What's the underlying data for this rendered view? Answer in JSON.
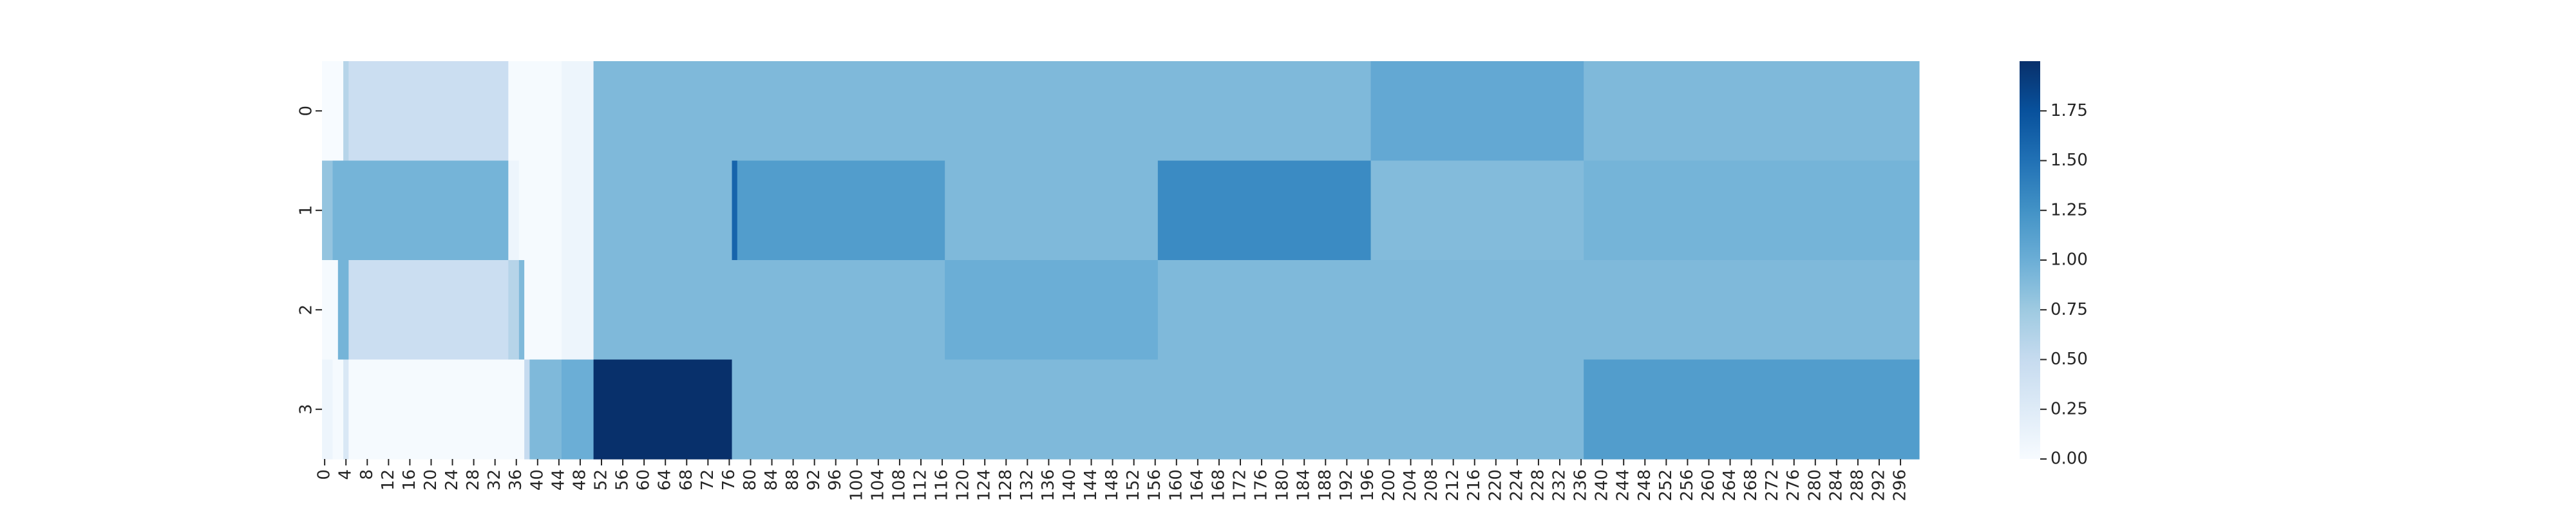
{
  "chart_data": {
    "type": "heatmap",
    "title": "",
    "xlabel": "",
    "ylabel": "",
    "colormap": "Blues",
    "vmin": 0.0,
    "vmax": 2.0,
    "n_columns": 300,
    "row_labels": [
      "0",
      "1",
      "2",
      "3"
    ],
    "x_tick_labels": [
      "0",
      "4",
      "8",
      "12",
      "16",
      "20",
      "24",
      "28",
      "32",
      "36",
      "40",
      "44",
      "48",
      "52",
      "56",
      "60",
      "64",
      "68",
      "72",
      "76",
      "80",
      "84",
      "88",
      "92",
      "96",
      "100",
      "104",
      "108",
      "112",
      "116",
      "120",
      "124",
      "128",
      "132",
      "136",
      "140",
      "144",
      "148",
      "152",
      "156",
      "160",
      "164",
      "168",
      "172",
      "176",
      "180",
      "184",
      "188",
      "192",
      "196",
      "200",
      "204",
      "208",
      "212",
      "216",
      "220",
      "224",
      "228",
      "232",
      "236",
      "240",
      "244",
      "248",
      "252",
      "256",
      "260",
      "264",
      "268",
      "272",
      "276",
      "280",
      "284",
      "288",
      "292",
      "296"
    ],
    "colorbar": {
      "ticks": [
        "0.00",
        "0.25",
        "0.50",
        "0.75",
        "1.00",
        "1.25",
        "1.50",
        "1.75"
      ],
      "range": [
        0.0,
        2.0
      ]
    },
    "rows": [
      {
        "label": "0",
        "segments": [
          {
            "start": 0,
            "end": 4,
            "value": 0.0
          },
          {
            "start": 4,
            "end": 5,
            "value": 0.6
          },
          {
            "start": 5,
            "end": 35,
            "value": 0.45
          },
          {
            "start": 35,
            "end": 45,
            "value": 0.02
          },
          {
            "start": 45,
            "end": 51,
            "value": 0.1
          },
          {
            "start": 51,
            "end": 197,
            "value": 0.9
          },
          {
            "start": 197,
            "end": 237,
            "value": 1.05
          },
          {
            "start": 237,
            "end": 300,
            "value": 0.9
          }
        ]
      },
      {
        "label": "1",
        "segments": [
          {
            "start": 0,
            "end": 2,
            "value": 0.8
          },
          {
            "start": 2,
            "end": 35,
            "value": 0.95
          },
          {
            "start": 35,
            "end": 37,
            "value": 0.1
          },
          {
            "start": 37,
            "end": 45,
            "value": 0.02
          },
          {
            "start": 45,
            "end": 51,
            "value": 0.1
          },
          {
            "start": 51,
            "end": 77,
            "value": 0.9
          },
          {
            "start": 77,
            "end": 78,
            "value": 1.6
          },
          {
            "start": 78,
            "end": 117,
            "value": 1.15
          },
          {
            "start": 117,
            "end": 157,
            "value": 0.9
          },
          {
            "start": 157,
            "end": 197,
            "value": 1.3
          },
          {
            "start": 197,
            "end": 237,
            "value": 0.88
          },
          {
            "start": 237,
            "end": 300,
            "value": 0.95
          }
        ]
      },
      {
        "label": "2",
        "segments": [
          {
            "start": 0,
            "end": 3,
            "value": 0.02
          },
          {
            "start": 3,
            "end": 5,
            "value": 0.95
          },
          {
            "start": 5,
            "end": 35,
            "value": 0.45
          },
          {
            "start": 35,
            "end": 37,
            "value": 0.6
          },
          {
            "start": 37,
            "end": 38,
            "value": 0.9
          },
          {
            "start": 38,
            "end": 45,
            "value": 0.02
          },
          {
            "start": 45,
            "end": 51,
            "value": 0.1
          },
          {
            "start": 51,
            "end": 117,
            "value": 0.9
          },
          {
            "start": 117,
            "end": 157,
            "value": 1.0
          },
          {
            "start": 157,
            "end": 300,
            "value": 0.9
          }
        ]
      },
      {
        "label": "3",
        "segments": [
          {
            "start": 0,
            "end": 2,
            "value": 0.1
          },
          {
            "start": 2,
            "end": 4,
            "value": 0.02
          },
          {
            "start": 4,
            "end": 5,
            "value": 0.3
          },
          {
            "start": 5,
            "end": 38,
            "value": 0.02
          },
          {
            "start": 38,
            "end": 39,
            "value": 0.5
          },
          {
            "start": 39,
            "end": 45,
            "value": 0.9
          },
          {
            "start": 45,
            "end": 51,
            "value": 1.0
          },
          {
            "start": 51,
            "end": 77,
            "value": 2.0
          },
          {
            "start": 77,
            "end": 237,
            "value": 0.9
          },
          {
            "start": 237,
            "end": 300,
            "value": 1.15
          }
        ]
      }
    ]
  }
}
